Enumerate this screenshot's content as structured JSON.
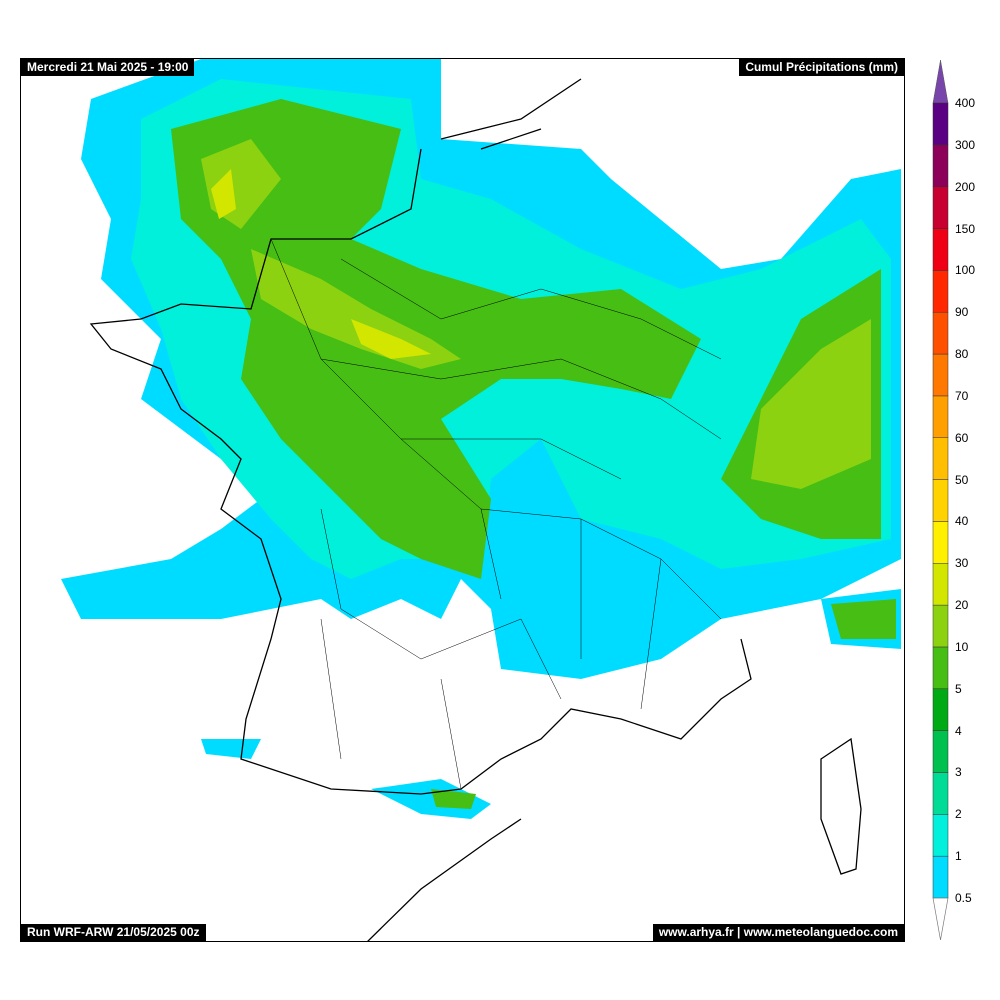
{
  "header": {
    "valid_time": "Mercredi 21 Mai 2025 - 19:00",
    "field_title": "Cumul Précipitations (mm)"
  },
  "footer": {
    "run_info": "Run WRF-ARW 21/05/2025 00z",
    "credits": "www.arhya.fr | www.meteolanguedoc.com"
  },
  "legend": {
    "ticks": [
      "0.5",
      "1",
      "2",
      "3",
      "4",
      "5",
      "10",
      "20",
      "30",
      "40",
      "50",
      "60",
      "70",
      "80",
      "90",
      "100",
      "150",
      "200",
      "300",
      "400"
    ],
    "colors": [
      "#00dcff",
      "#00f0dc",
      "#00dc96",
      "#00c050",
      "#00aa14",
      "#46be14",
      "#8cd210",
      "#d2e600",
      "#fff000",
      "#ffd200",
      "#ffbe00",
      "#ffa000",
      "#ff7800",
      "#ff5000",
      "#ff2800",
      "#f00014",
      "#c80032",
      "#8c005a",
      "#5a0082"
    ],
    "over_color": "#7846aa",
    "under_color": "#ffffff"
  }
}
